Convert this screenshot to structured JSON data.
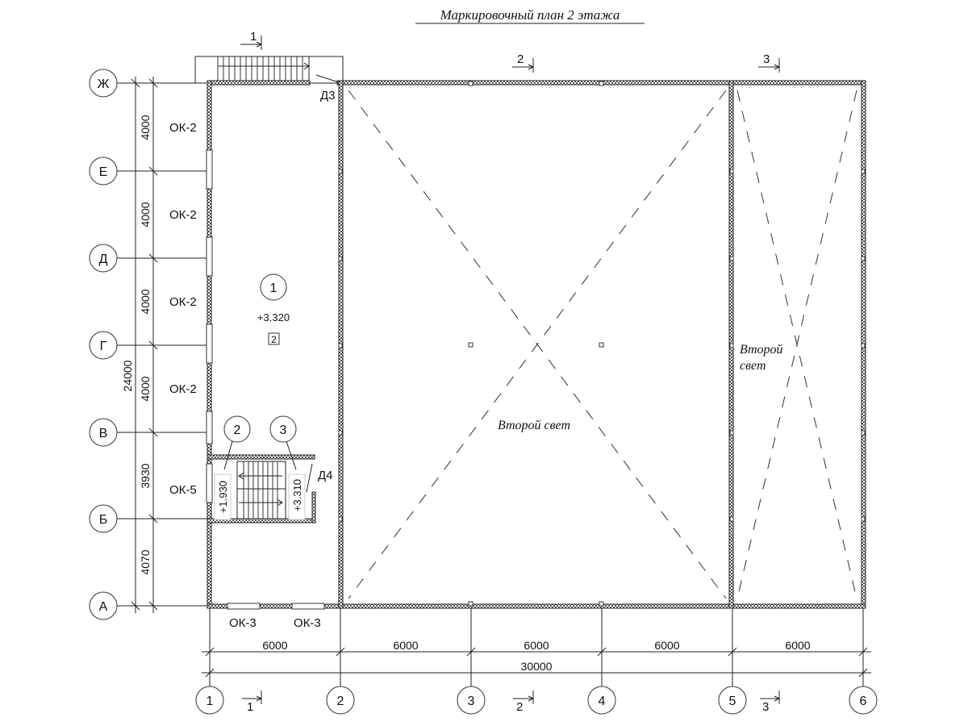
{
  "title": "Маркировочный план 2 этажа",
  "row_axes": [
    "Ж",
    "Е",
    "Д",
    "Г",
    "В",
    "Б",
    "А"
  ],
  "column_axes": [
    "1",
    "2",
    "3",
    "4",
    "5",
    "6"
  ],
  "row_dimensions": [
    "4000",
    "4000",
    "4000",
    "4000",
    "3930",
    "4070"
  ],
  "row_total": "24000",
  "column_dimensions": [
    "6000",
    "6000",
    "6000",
    "6000",
    "6000"
  ],
  "column_total": "30000",
  "windows_left": [
    "ОК-2",
    "ОК-2",
    "ОК-2",
    "ОК-2",
    "ОК-5"
  ],
  "windows_bottom": [
    "ОК-3",
    "ОК-3"
  ],
  "doors": [
    "Д3",
    "Д4"
  ],
  "sections": [
    "1",
    "2",
    "3"
  ],
  "rooms": [
    {
      "number": "1",
      "level": "+3.320",
      "tag": "2"
    },
    {
      "number": "2",
      "level": "+1.930"
    },
    {
      "number": "3",
      "level": "+3.310"
    }
  ],
  "double_height_label_main": "Второй свет",
  "double_height_label_side_1": "Второй",
  "double_height_label_side_2": "свет"
}
